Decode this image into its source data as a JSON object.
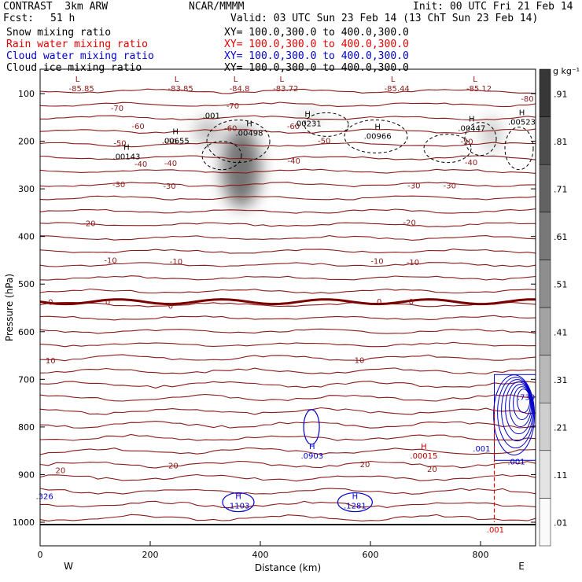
{
  "header": {
    "model": "CONTRAST  3km ARW",
    "center": "NCAR/MMMM",
    "init": "Init: 00 UTC Fri 21 Feb 14",
    "fcst_label": "Fcst:",
    "fcst_value": "51 h",
    "valid": "Valid: 03 UTC Sun 23 Feb 14 (13 ChT Sun 23 Feb 14)",
    "rows": [
      {
        "name": "Snow mixing ratio",
        "xy": "XY= 100.0,300.0 to 400.0,300.0",
        "color": "#000000"
      },
      {
        "name": "Rain water mixing ratio",
        "xy": "XY= 100.0,300.0 to 400.0,300.0",
        "color": "#e00000"
      },
      {
        "name": "Cloud water mixing ratio",
        "xy": "XY= 100.0,300.0 to 400.0,300.0",
        "color": "#0000cc"
      },
      {
        "name": "Cloud ice mixing ratio",
        "xy": "XY= 100.0,300.0 to 400.0,300.0",
        "color": "#000000"
      }
    ]
  },
  "chart_data": {
    "type": "cross-section",
    "xlabel": "Distance (km)",
    "ylabel": "Pressure (hPa)",
    "xlim": [
      0,
      900
    ],
    "ylim": [
      1050,
      60
    ],
    "x_ticks": [
      0,
      200,
      400,
      600,
      800
    ],
    "y_ticks": [
      100,
      200,
      300,
      400,
      500,
      600,
      700,
      800,
      900,
      1000
    ],
    "west_label": "W",
    "east_label": "E",
    "colorbar": {
      "unit": "g kg⁻¹",
      "levels": [
        ".01",
        ".11",
        ".21",
        ".31",
        ".41",
        ".51",
        ".61",
        ".71",
        ".81",
        ".91"
      ]
    },
    "temperature_isotherms": [
      {
        "label": "-70",
        "p": 135
      },
      {
        "label": "-60",
        "p": 165
      },
      {
        "label": "-50",
        "p": 205
      },
      {
        "label": "-40",
        "p": 245
      },
      {
        "label": "-30",
        "p": 290
      },
      {
        "label": "-20",
        "p": 370
      },
      {
        "label": "-10",
        "p": 450
      },
      {
        "label": "0",
        "p": 537
      },
      {
        "label": "10",
        "p": 665
      },
      {
        "label": "20",
        "p": 880
      }
    ],
    "temperature_labels": [
      {
        "text": "-70",
        "x": 350,
        "p": 125
      },
      {
        "text": "-70",
        "x": 140,
        "p": 130
      },
      {
        "text": "-80",
        "x": 885,
        "p": 110
      },
      {
        "text": "-60",
        "x": 178,
        "p": 168
      },
      {
        "text": "-60",
        "x": 346,
        "p": 172
      },
      {
        "text": "-60",
        "x": 460,
        "p": 168
      },
      {
        "text": "-50",
        "x": 145,
        "p": 203
      },
      {
        "text": "-50",
        "x": 237,
        "p": 200
      },
      {
        "text": "-50",
        "x": 516,
        "p": 198
      },
      {
        "text": "-50",
        "x": 775,
        "p": 200
      },
      {
        "text": "-40",
        "x": 183,
        "p": 247
      },
      {
        "text": "-40",
        "x": 237,
        "p": 245
      },
      {
        "text": "-40",
        "x": 461,
        "p": 240
      },
      {
        "text": "-40",
        "x": 783,
        "p": 244
      },
      {
        "text": "-30",
        "x": 143,
        "p": 290
      },
      {
        "text": "-30",
        "x": 235,
        "p": 293
      },
      {
        "text": "-30",
        "x": 679,
        "p": 292
      },
      {
        "text": "-30",
        "x": 744,
        "p": 292
      },
      {
        "text": "-20",
        "x": 89,
        "p": 372
      },
      {
        "text": "-20",
        "x": 671,
        "p": 370
      },
      {
        "text": "-10",
        "x": 128,
        "p": 449
      },
      {
        "text": "-10",
        "x": 247,
        "p": 452
      },
      {
        "text": "-10",
        "x": 612,
        "p": 451
      },
      {
        "text": "-10",
        "x": 677,
        "p": 453
      },
      {
        "text": "0",
        "x": 19,
        "p": 537
      },
      {
        "text": "0",
        "x": 123,
        "p": 537
      },
      {
        "text": "0",
        "x": 237,
        "p": 545
      },
      {
        "text": "0",
        "x": 616,
        "p": 536
      },
      {
        "text": "0",
        "x": 674,
        "p": 536
      },
      {
        "text": "10",
        "x": 19,
        "p": 660
      },
      {
        "text": "10",
        "x": 580,
        "p": 659
      },
      {
        "text": "20",
        "x": 37,
        "p": 890
      },
      {
        "text": "20",
        "x": 242,
        "p": 880
      },
      {
        "text": "20",
        "x": 590,
        "p": 878
      },
      {
        "text": "20",
        "x": 712,
        "p": 888
      }
    ],
    "lows_top": [
      {
        "text": "L",
        "value": "-85.85",
        "x": 68
      },
      {
        "text": "L",
        "value": "-83.85",
        "x": 248
      },
      {
        "text": "L",
        "value": "-84.8",
        "x": 355
      },
      {
        "text": "L",
        "value": "-83.72",
        "x": 439
      },
      {
        "text": "L",
        "value": "-85.44",
        "x": 641
      },
      {
        "text": "L",
        "value": "-85.12",
        "x": 790
      }
    ],
    "maxima": [
      {
        "text": "H",
        "value": ".00143",
        "x": 157,
        "p": 225,
        "color": "#000000"
      },
      {
        "text": "H",
        "value": ".00655",
        "x": 246,
        "p": 192,
        "color": "#000000"
      },
      {
        "text": "H",
        "value": ".00231",
        "x": 486,
        "p": 155,
        "color": "#000000"
      },
      {
        "text": "H",
        "value": ".00966",
        "x": 613,
        "p": 182,
        "color": "#000000"
      },
      {
        "text": "H",
        "value": ".00447",
        "x": 784,
        "p": 165,
        "color": "#000000"
      },
      {
        "text": "H",
        "value": ".00523",
        "x": 875,
        "p": 152,
        "color": "#000000"
      },
      {
        "text": "H",
        "value": ".00498",
        "x": 380,
        "p": 175,
        "color": "#000000"
      },
      {
        "text": "H",
        "value": ".0903",
        "x": 494,
        "p": 853,
        "color": "#0000cc"
      },
      {
        "text": "H",
        "value": ".1103",
        "x": 360,
        "p": 958,
        "color": "#0000cc"
      },
      {
        "text": "H",
        "value": ".1281",
        "x": 572,
        "p": 958,
        "color": "#0000cc"
      },
      {
        "text": "H",
        "value": ".00015",
        "x": 697,
        "p": 853,
        "color": "#bb0000"
      }
    ],
    "extra_labels": [
      {
        "text": ".001",
        "x": 311,
        "p": 145,
        "color": "#000000"
      },
      {
        "text": ".001",
        "x": 802,
        "p": 845,
        "color": "#0000cc"
      },
      {
        "text": ".001",
        "x": 865,
        "p": 872,
        "color": "#0000cc"
      },
      {
        "text": ".001",
        "x": 827,
        "p": 1015,
        "color": "#e00000"
      },
      {
        "text": ".739",
        "x": 883,
        "p": 737,
        "color": "#0000cc"
      },
      {
        "text": ".326",
        "x": 8,
        "p": 945,
        "color": "#0000cc"
      }
    ],
    "snow_shading": [
      {
        "x": 365,
        "p": 255,
        "rx": 35,
        "rp": 85,
        "peak": 0.55
      },
      {
        "x": 305,
        "p": 180,
        "rx": 25,
        "rp": 30,
        "peak": 0.25
      },
      {
        "x": 820,
        "p": 185,
        "rx": 15,
        "rp": 35,
        "peak": 0.25
      },
      {
        "x": 490,
        "p": 150,
        "rx": 25,
        "rp": 15,
        "peak": 0.15
      }
    ]
  }
}
